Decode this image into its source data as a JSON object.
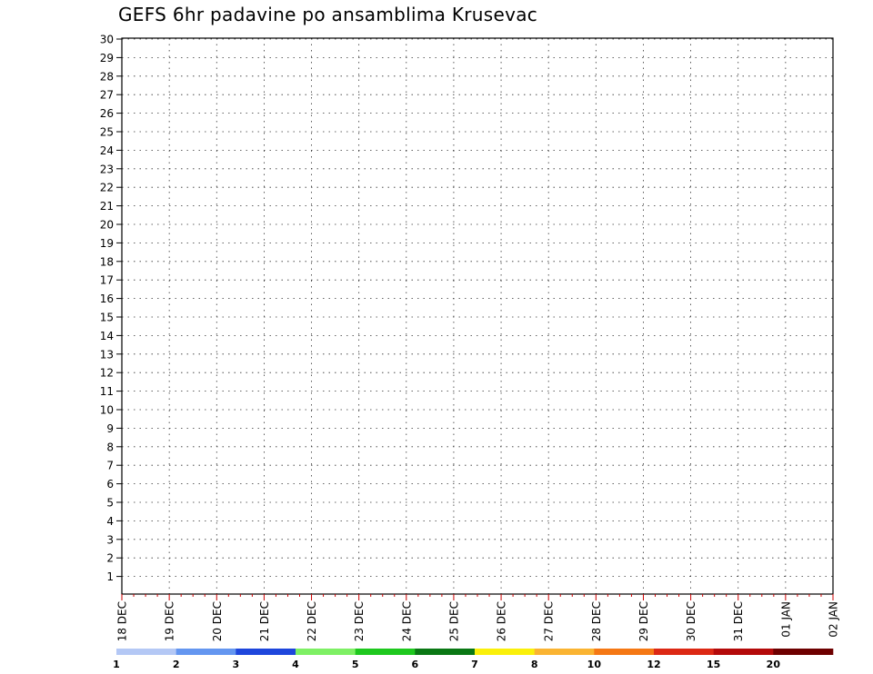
{
  "title": "GEFS 6hr padavine po ansamblima Krusevac",
  "chart_data": {
    "type": "heatmap",
    "title": "GEFS 6hr padavine po ansamblima Krusevac",
    "xlabel": "",
    "ylabel": "",
    "x_start": "18 DEC 00Z",
    "x_step_hours": 6,
    "x_count": 60,
    "y_range": [
      0,
      30
    ],
    "x_tick_labels": [
      "18 DEC",
      "19 DEC",
      "20 DEC",
      "21 DEC",
      "22 DEC",
      "23 DEC",
      "24 DEC",
      "25 DEC",
      "26 DEC",
      "27 DEC",
      "28 DEC",
      "29 DEC",
      "30 DEC",
      "31 DEC",
      "01 JAN",
      "02 JAN"
    ],
    "y_tick_labels": [
      "1",
      "2",
      "3",
      "4",
      "5",
      "6",
      "7",
      "8",
      "9",
      "10",
      "11",
      "12",
      "13",
      "14",
      "15",
      "16",
      "17",
      "18",
      "19",
      "20",
      "21",
      "22",
      "23",
      "24",
      "25",
      "26",
      "27",
      "28",
      "29",
      "30"
    ],
    "grid": true,
    "colorbar": {
      "bounds": [
        1,
        2,
        3,
        4,
        5,
        6,
        7,
        8,
        10,
        12,
        15,
        20
      ],
      "tick_labels": [
        "1",
        "2",
        "3",
        "4",
        "5",
        "6",
        "7",
        "8",
        "10",
        "12",
        "15",
        "20"
      ],
      "colors": [
        "#b4c8f5",
        "#6496f0",
        "#1e46dc",
        "#7ef064",
        "#1ec81e",
        "#0a7814",
        "#faf00a",
        "#fab432",
        "#f57814",
        "#dc2814",
        "#b40a0a",
        "#6e0000"
      ]
    },
    "cell_values_legend": "values[member][time] = 6hr precipitation in colorbar class index 0-12 (0 = below 1)",
    "members": [
      {
        "member": 0,
        "values": "000000000000000000000000000000000000000000000000000000000000"
      },
      {
        "member": 1,
        "values": "000000000000000000000000000000000000000000000000000000000000"
      }
    ]
  }
}
